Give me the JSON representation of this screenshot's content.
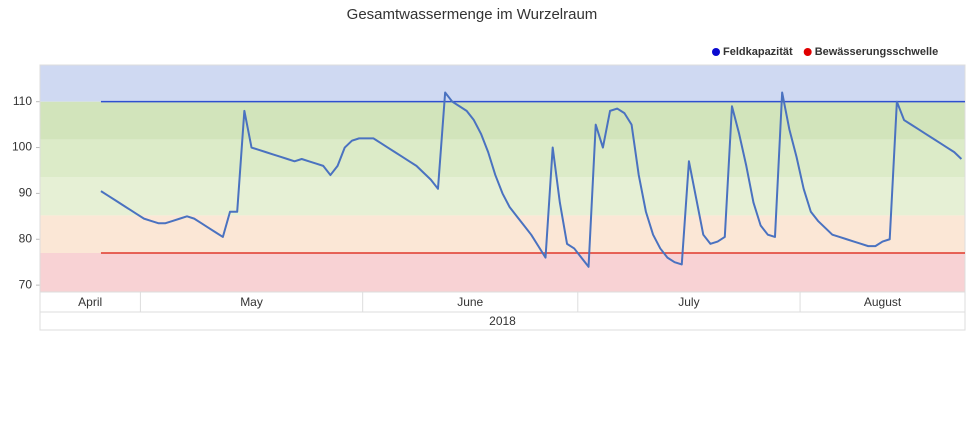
{
  "chart_data": {
    "type": "line",
    "title": "Gesamtwassermenge im Wurzelraum",
    "ylim": [
      68.5,
      118
    ],
    "yticks": [
      70,
      80,
      90,
      100,
      110
    ],
    "year": "2018",
    "bands": [
      {
        "from": 110,
        "to": 118,
        "color": "#cfd9f2"
      },
      {
        "from": 101.7,
        "to": 110,
        "color": "#d2e4bb"
      },
      {
        "from": 93.5,
        "to": 101.7,
        "color": "#dcebc8"
      },
      {
        "from": 85.2,
        "to": 93.5,
        "color": "#e6f0d5"
      },
      {
        "from": 77,
        "to": 85.2,
        "color": "#fbe7d6"
      },
      {
        "from": 68.5,
        "to": 77,
        "color": "#f8d2d4"
      }
    ],
    "reference_lines": [
      {
        "name": "Feldkapazität",
        "value": 110,
        "color": "#2f4fd0",
        "legend_color": "#0a0ad0"
      },
      {
        "name": "Bewässerungsschwelle",
        "value": 77,
        "color": "#e0392b",
        "legend_color": "#e00000"
      }
    ],
    "categories": [
      "April",
      "April",
      "April",
      "April",
      "April",
      "April",
      "April",
      "April",
      "April",
      "April",
      "April",
      "April",
      "April",
      "April",
      "May",
      "May",
      "May",
      "May",
      "May",
      "May",
      "May",
      "May",
      "May",
      "May",
      "May",
      "May",
      "May",
      "May",
      "May",
      "May",
      "May",
      "May",
      "May",
      "May",
      "May",
      "May",
      "May",
      "May",
      "May",
      "May",
      "May",
      "May",
      "May",
      "May",
      "May",
      "June",
      "June",
      "June",
      "June",
      "June",
      "June",
      "June",
      "June",
      "June",
      "June",
      "June",
      "June",
      "June",
      "June",
      "June",
      "June",
      "June",
      "June",
      "June",
      "June",
      "June",
      "June",
      "June",
      "June",
      "June",
      "June",
      "June",
      "June",
      "June",
      "June",
      "July",
      "July",
      "July",
      "July",
      "July",
      "July",
      "July",
      "July",
      "July",
      "July",
      "July",
      "July",
      "July",
      "July",
      "July",
      "July",
      "July",
      "July",
      "July",
      "July",
      "July",
      "July",
      "July",
      "July",
      "July",
      "July",
      "July",
      "July",
      "July",
      "July",
      "July",
      "August",
      "August",
      "August",
      "August",
      "August",
      "August",
      "August",
      "August",
      "August",
      "August",
      "August",
      "August",
      "August",
      "August",
      "August",
      "August",
      "August",
      "August",
      "August",
      "August",
      "August",
      "August",
      "August"
    ],
    "series": [
      {
        "color": "#4a72c0",
        "values": [
          null,
          null,
          null,
          null,
          null,
          null,
          null,
          null,
          90.5,
          89.5,
          88.5,
          87.5,
          86.5,
          85.5,
          84.5,
          84,
          83.5,
          83.5,
          84,
          84.5,
          85,
          84.5,
          83.5,
          82.5,
          81.5,
          80.5,
          86,
          86,
          108,
          100,
          99.5,
          99,
          98.5,
          98,
          97.5,
          97,
          97.5,
          97,
          96.5,
          96,
          94,
          96,
          100,
          101.5,
          102,
          102,
          102,
          101,
          100,
          99,
          98,
          97,
          96,
          94.5,
          93,
          91,
          112,
          110,
          109,
          108,
          106,
          103,
          99,
          94,
          90,
          87,
          85,
          83,
          81,
          78.5,
          76,
          100,
          88,
          79,
          78,
          76,
          74,
          105,
          100,
          108,
          108.5,
          107.5,
          105,
          94,
          86,
          81,
          78,
          76,
          75,
          74.5,
          97,
          89,
          81,
          79,
          79.5,
          80.5,
          109,
          103,
          96,
          88,
          83,
          81,
          80.5,
          112,
          104,
          98,
          91,
          86,
          84,
          82.5,
          81,
          80.5,
          80,
          79.5,
          79,
          78.5,
          78.5,
          79.5,
          80,
          110,
          106,
          105,
          104,
          103,
          102,
          101,
          100,
          99,
          97.5
        ]
      }
    ]
  }
}
